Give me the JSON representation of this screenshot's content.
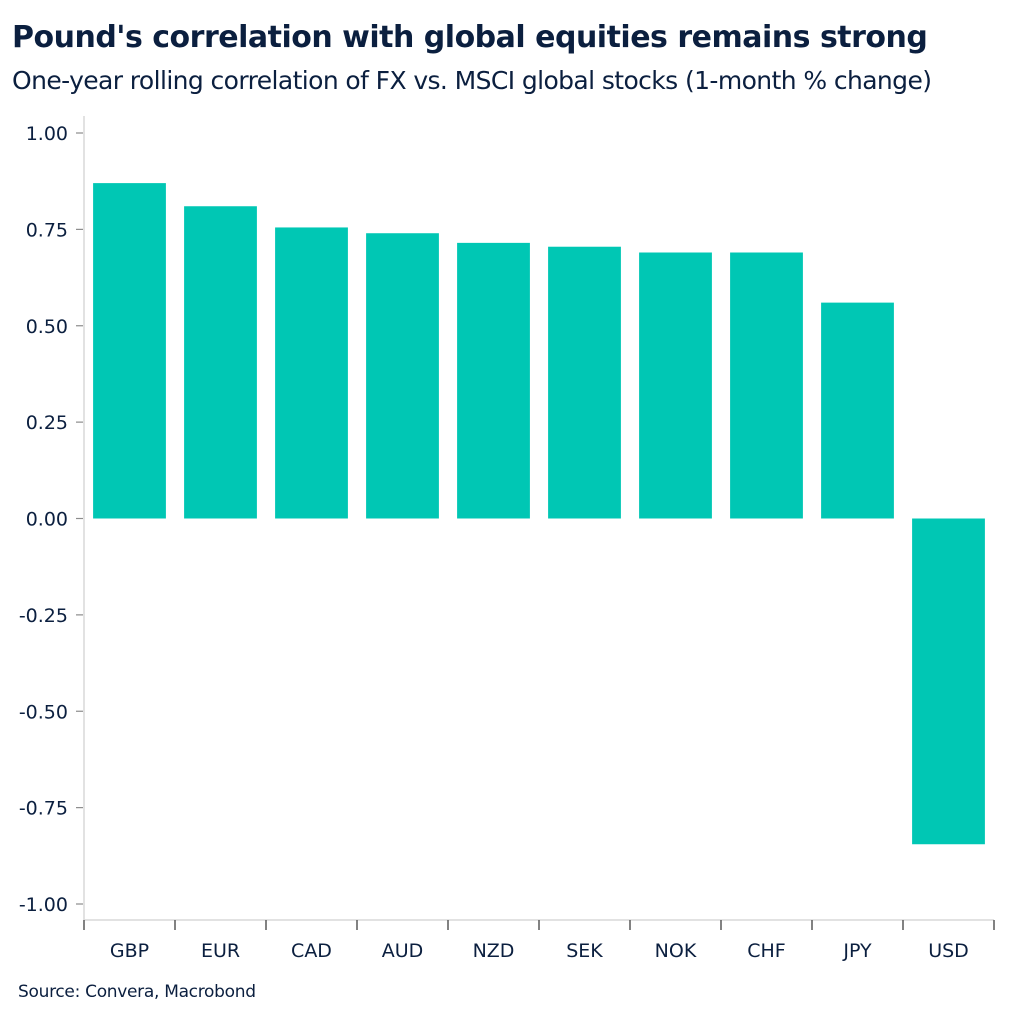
{
  "chart_data": {
    "type": "bar",
    "title": "Pound's correlation with global equities remains strong",
    "subtitle": "One-year rolling correlation of FX vs. MSCI global stocks (1-month % change)",
    "xlabel": "",
    "ylabel": "",
    "categories": [
      "GBP",
      "EUR",
      "CAD",
      "AUD",
      "NZD",
      "SEK",
      "NOK",
      "CHF",
      "JPY",
      "USD"
    ],
    "values": [
      0.87,
      0.81,
      0.755,
      0.74,
      0.715,
      0.705,
      0.69,
      0.69,
      0.56,
      -0.845
    ],
    "ylim": [
      -1.0,
      1.0
    ],
    "yticks": [
      1.0,
      0.75,
      0.5,
      0.25,
      0.0,
      -0.25,
      -0.5,
      -0.75,
      -1.0
    ],
    "ytick_labels": [
      "1.00",
      "0.75",
      "0.50",
      "0.25",
      "0.00",
      "-0.25",
      "-0.50",
      "-0.75",
      "-1.00"
    ],
    "grid": false,
    "legend": "none",
    "bar_color": "#00c7b4",
    "source": "Source: Convera, Macrobond"
  }
}
